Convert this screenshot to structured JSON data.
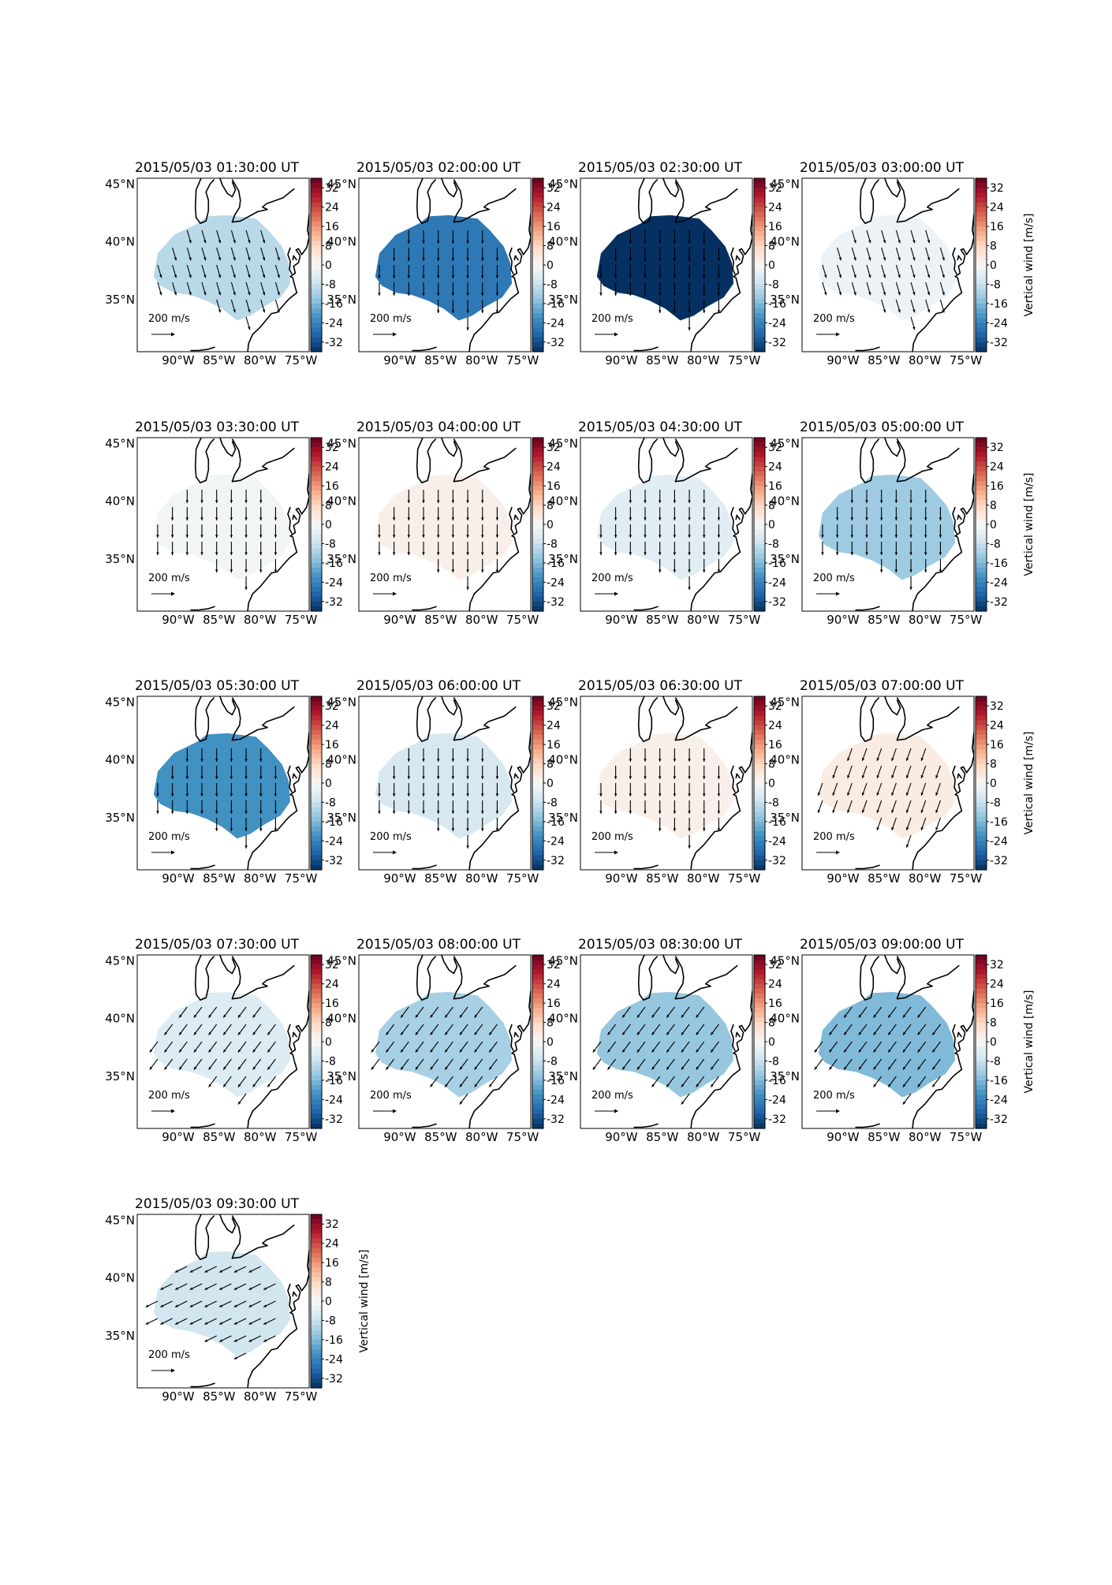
{
  "figure": {
    "colorbar_label": "Vertical wind [m/s]",
    "colorbar_ticks": [
      32,
      24,
      16,
      8,
      0,
      -8,
      -16,
      -24,
      -32
    ],
    "colorbar_range": [
      -36,
      36
    ],
    "lon_ticks": [
      "90°W",
      "85°W",
      "80°W",
      "75°W"
    ],
    "lat_ticks": [
      "45°N",
      "40°N",
      "35°N"
    ],
    "arrow_key_label": "200 m/s",
    "colormap": "RdBu_r",
    "colormap_stops": [
      "#053061",
      "#2166ac",
      "#4393c3",
      "#92c5de",
      "#d1e5f0",
      "#f7f7f7",
      "#fddbc7",
      "#f4a582",
      "#d6604d",
      "#b2182b",
      "#67001f"
    ]
  },
  "chart_data": [
    {
      "type": "heatmap",
      "title": "2015/05/03 01:30:00 UT",
      "vertical_wind_mps": -10,
      "arrow_direction": "south-southeast"
    },
    {
      "type": "heatmap",
      "title": "2015/05/03 02:00:00 UT",
      "vertical_wind_mps": -26,
      "arrow_direction": "south"
    },
    {
      "type": "heatmap",
      "title": "2015/05/03 02:30:00 UT",
      "vertical_wind_mps": -36,
      "arrow_direction": "south"
    },
    {
      "type": "heatmap",
      "title": "2015/05/03 03:00:00 UT",
      "vertical_wind_mps": -2,
      "arrow_direction": "south-southeast"
    },
    {
      "type": "heatmap",
      "title": "2015/05/03 03:30:00 UT",
      "vertical_wind_mps": -1,
      "arrow_direction": "south"
    },
    {
      "type": "heatmap",
      "title": "2015/05/03 04:00:00 UT",
      "vertical_wind_mps": 2,
      "arrow_direction": "south"
    },
    {
      "type": "heatmap",
      "title": "2015/05/03 04:30:00 UT",
      "vertical_wind_mps": -4,
      "arrow_direction": "south"
    },
    {
      "type": "heatmap",
      "title": "2015/05/03 05:00:00 UT",
      "vertical_wind_mps": -13,
      "arrow_direction": "south"
    },
    {
      "type": "heatmap",
      "title": "2015/05/03 05:30:00 UT",
      "vertical_wind_mps": -22,
      "arrow_direction": "south"
    },
    {
      "type": "heatmap",
      "title": "2015/05/03 06:00:00 UT",
      "vertical_wind_mps": -6,
      "arrow_direction": "south"
    },
    {
      "type": "heatmap",
      "title": "2015/05/03 06:30:00 UT",
      "vertical_wind_mps": 2,
      "arrow_direction": "south"
    },
    {
      "type": "heatmap",
      "title": "2015/05/03 07:00:00 UT",
      "vertical_wind_mps": 3,
      "arrow_direction": "south-southwest"
    },
    {
      "type": "heatmap",
      "title": "2015/05/03 07:30:00 UT",
      "vertical_wind_mps": -5,
      "arrow_direction": "southwest"
    },
    {
      "type": "heatmap",
      "title": "2015/05/03 08:00:00 UT",
      "vertical_wind_mps": -12,
      "arrow_direction": "southwest"
    },
    {
      "type": "heatmap",
      "title": "2015/05/03 08:30:00 UT",
      "vertical_wind_mps": -14,
      "arrow_direction": "southwest"
    },
    {
      "type": "heatmap",
      "title": "2015/05/03 09:00:00 UT",
      "vertical_wind_mps": -16,
      "arrow_direction": "southwest"
    },
    {
      "type": "heatmap",
      "title": "2015/05/03 09:30:00 UT",
      "vertical_wind_mps": -7,
      "arrow_direction": "west-southwest"
    }
  ]
}
